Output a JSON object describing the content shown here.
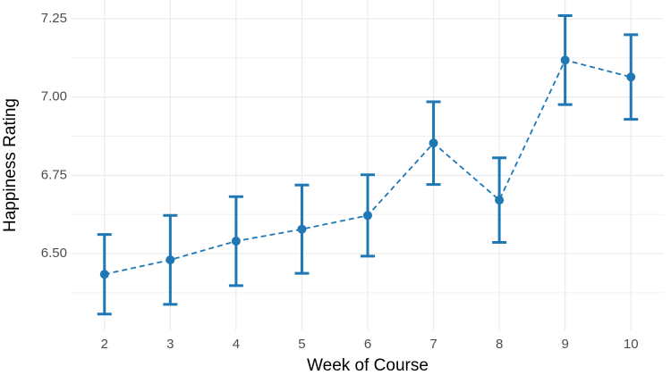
{
  "chart_data": {
    "type": "errorbar-line",
    "x_label": "Week of Course",
    "y_label": "Happiness Rating",
    "x": [
      2,
      3,
      4,
      5,
      6,
      7,
      8,
      9,
      10
    ],
    "values": [
      6.434,
      6.48,
      6.54,
      6.578,
      6.622,
      6.853,
      6.671,
      7.118,
      7.064
    ],
    "errors": [
      0.127,
      0.142,
      0.142,
      0.141,
      0.13,
      0.132,
      0.135,
      0.142,
      0.135
    ],
    "color": "#1f78b4",
    "xlim": [
      1.5,
      10.5
    ],
    "xticks": [
      2,
      3,
      4,
      5,
      6,
      7,
      8,
      9,
      10
    ],
    "ylim": [
      6.255,
      7.31
    ],
    "yticks": [
      {
        "value": 6.5,
        "label": "6.50"
      },
      {
        "value": 6.75,
        "label": "6.75"
      },
      {
        "value": 7,
        "label": "7.00"
      },
      {
        "value": 7.25,
        "label": "7.25"
      }
    ],
    "minor_yticks": [
      6.375,
      6.625,
      6.875,
      7.125
    ],
    "grid": true
  }
}
